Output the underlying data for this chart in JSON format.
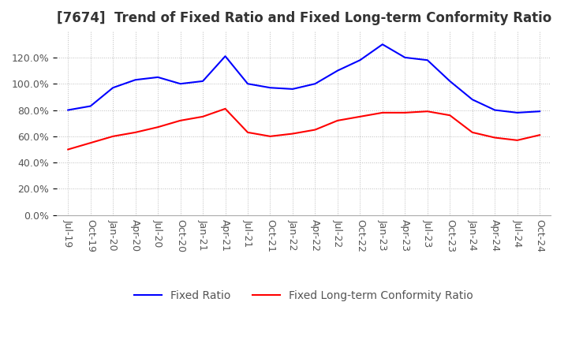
{
  "title": "[7674]  Trend of Fixed Ratio and Fixed Long-term Conformity Ratio",
  "x_labels": [
    "Jul-19",
    "Oct-19",
    "Jan-20",
    "Apr-20",
    "Jul-20",
    "Oct-20",
    "Jan-21",
    "Apr-21",
    "Jul-21",
    "Oct-21",
    "Jan-22",
    "Apr-22",
    "Jul-22",
    "Oct-22",
    "Jan-23",
    "Apr-23",
    "Jul-23",
    "Oct-23",
    "Jan-24",
    "Apr-24",
    "Jul-24",
    "Oct-24"
  ],
  "fixed_ratio": [
    80.0,
    83.0,
    97.0,
    103.0,
    105.0,
    100.0,
    102.0,
    121.0,
    100.0,
    97.0,
    96.0,
    100.0,
    110.0,
    118.0,
    130.0,
    120.0,
    118.0,
    102.0,
    88.0,
    80.0,
    78.0,
    79.0
  ],
  "fixed_lt_ratio": [
    50.0,
    55.0,
    60.0,
    63.0,
    67.0,
    72.0,
    75.0,
    81.0,
    63.0,
    60.0,
    62.0,
    65.0,
    72.0,
    75.0,
    78.0,
    78.0,
    79.0,
    76.0,
    63.0,
    59.0,
    57.0,
    61.0
  ],
  "fixed_ratio_color": "#0000FF",
  "fixed_lt_ratio_color": "#FF0000",
  "ylim": [
    0,
    140
  ],
  "yticks": [
    0,
    20,
    40,
    60,
    80,
    100,
    120
  ],
  "background_color": "#FFFFFF",
  "grid_color": "#BBBBBB",
  "title_fontsize": 12,
  "legend_fontsize": 10,
  "tick_fontsize": 9
}
